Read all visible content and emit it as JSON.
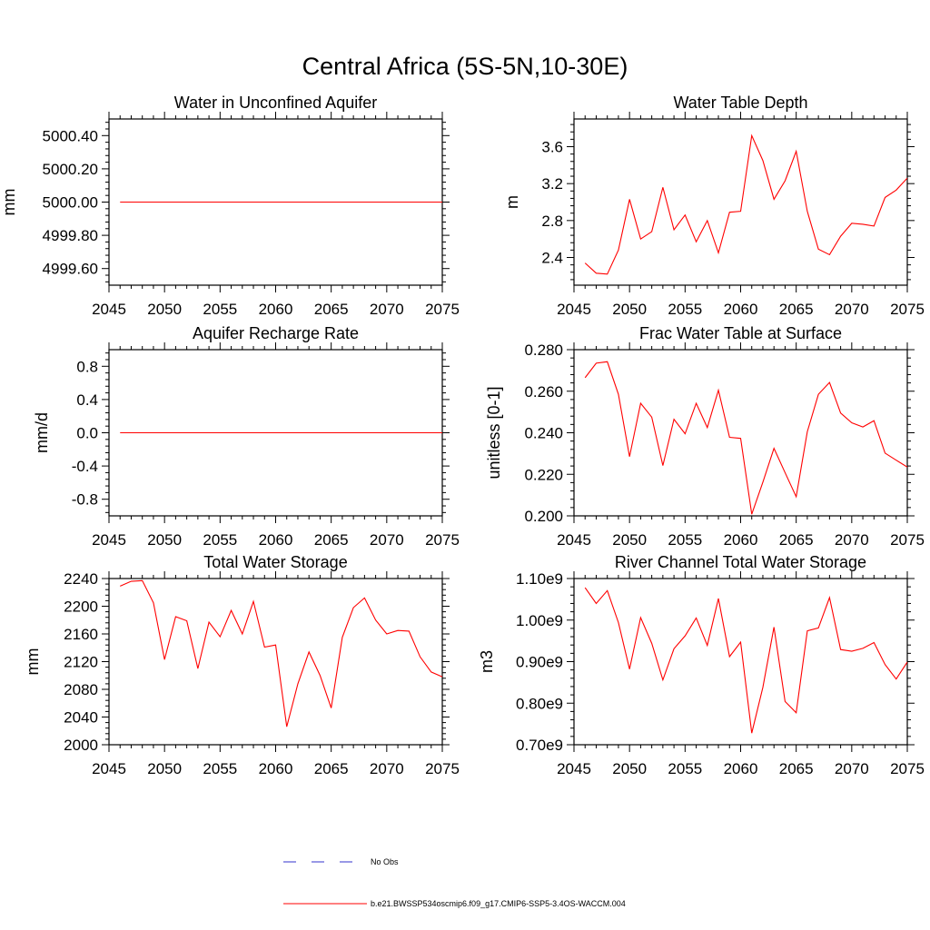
{
  "title": "Central Africa (5S-5N,10-30E)",
  "colors": {
    "model": "#ff0000",
    "obs": "#3333cc",
    "axis": "#000000"
  },
  "legend": {
    "position": "bottom-center",
    "items": [
      {
        "label": "No Obs",
        "style": "dashed",
        "color": "#3333cc"
      },
      {
        "label": "b.e21.BWSSP534oscmip6.f09_g17.CMIP6-SSP5-3.4OS-WACCM.004",
        "style": "solid",
        "color": "#ff0000"
      }
    ]
  },
  "chart_data": [
    {
      "type": "line",
      "title": "Water in Unconfined Aquifer",
      "ylabel": "mm",
      "xlim": [
        2045,
        2075
      ],
      "ylim": [
        4999.5,
        5000.5
      ],
      "xticks": [
        2045,
        2050,
        2055,
        2060,
        2065,
        2070,
        2075
      ],
      "yticks": [
        4999.6,
        4999.8,
        5000.0,
        5000.2,
        5000.4
      ],
      "ytick_labels": [
        "4999.60",
        "4999.80",
        "5000.00",
        "5000.20",
        "5000.40"
      ],
      "x": [
        2046,
        2047,
        2048,
        2049,
        2050,
        2051,
        2052,
        2053,
        2054,
        2055,
        2056,
        2057,
        2058,
        2059,
        2060,
        2061,
        2062,
        2063,
        2064,
        2065,
        2066,
        2067,
        2068,
        2069,
        2070,
        2071,
        2072,
        2073,
        2074,
        2075
      ],
      "series": [
        {
          "values": [
            5000,
            5000,
            5000,
            5000,
            5000,
            5000,
            5000,
            5000,
            5000,
            5000,
            5000,
            5000,
            5000,
            5000,
            5000,
            5000,
            5000,
            5000,
            5000,
            5000,
            5000,
            5000,
            5000,
            5000,
            5000,
            5000,
            5000,
            5000,
            5000,
            5000
          ]
        }
      ]
    },
    {
      "type": "line",
      "title": "Water Table Depth",
      "ylabel": "m",
      "xlim": [
        2045,
        2075
      ],
      "ylim": [
        2.1,
        3.9
      ],
      "xticks": [
        2045,
        2050,
        2055,
        2060,
        2065,
        2070,
        2075
      ],
      "yticks": [
        2.4,
        2.8,
        3.2,
        3.6
      ],
      "ytick_labels": [
        "2.4",
        "2.8",
        "3.2",
        "3.6"
      ],
      "x": [
        2046,
        2047,
        2048,
        2049,
        2050,
        2051,
        2052,
        2053,
        2054,
        2055,
        2056,
        2057,
        2058,
        2059,
        2060,
        2061,
        2062,
        2063,
        2064,
        2065,
        2066,
        2067,
        2068,
        2069,
        2070,
        2071,
        2072,
        2073,
        2074,
        2075
      ],
      "series": [
        {
          "values": [
            2.34,
            2.23,
            2.22,
            2.48,
            3.03,
            2.6,
            2.68,
            3.16,
            2.7,
            2.86,
            2.57,
            2.8,
            2.45,
            2.89,
            2.9,
            3.72,
            3.45,
            3.03,
            3.23,
            3.55,
            2.9,
            2.49,
            2.43,
            2.63,
            2.77,
            2.76,
            2.74,
            3.05,
            3.13,
            3.26
          ]
        }
      ]
    },
    {
      "type": "line",
      "title": "Aquifer Recharge Rate",
      "ylabel": "mm/d",
      "xlim": [
        2045,
        2075
      ],
      "ylim": [
        -1.0,
        1.0
      ],
      "xticks": [
        2045,
        2050,
        2055,
        2060,
        2065,
        2070,
        2075
      ],
      "yticks": [
        -0.8,
        -0.4,
        0.0,
        0.4,
        0.8
      ],
      "ytick_labels": [
        "-0.8",
        "-0.4",
        "0.0",
        "0.4",
        "0.8"
      ],
      "x": [
        2046,
        2047,
        2048,
        2049,
        2050,
        2051,
        2052,
        2053,
        2054,
        2055,
        2056,
        2057,
        2058,
        2059,
        2060,
        2061,
        2062,
        2063,
        2064,
        2065,
        2066,
        2067,
        2068,
        2069,
        2070,
        2071,
        2072,
        2073,
        2074,
        2075
      ],
      "series": [
        {
          "values": [
            0,
            0,
            0,
            0,
            0,
            0,
            0,
            0,
            0,
            0,
            0,
            0,
            0,
            0,
            0,
            0,
            0,
            0,
            0,
            0,
            0,
            0,
            0,
            0,
            0,
            0,
            0,
            0,
            0,
            0
          ]
        }
      ]
    },
    {
      "type": "line",
      "title": "Frac Water Table at Surface",
      "ylabel": "unitless [0-1]",
      "xlim": [
        2045,
        2075
      ],
      "ylim": [
        0.2,
        0.28
      ],
      "xticks": [
        2045,
        2050,
        2055,
        2060,
        2065,
        2070,
        2075
      ],
      "yticks": [
        0.2,
        0.22,
        0.24,
        0.26,
        0.28
      ],
      "ytick_labels": [
        "0.200",
        "0.220",
        "0.240",
        "0.260",
        "0.280"
      ],
      "x": [
        2046,
        2047,
        2048,
        2049,
        2050,
        2051,
        2052,
        2053,
        2054,
        2055,
        2056,
        2057,
        2058,
        2059,
        2060,
        2061,
        2062,
        2063,
        2064,
        2065,
        2066,
        2067,
        2068,
        2069,
        2070,
        2071,
        2072,
        2073,
        2074,
        2075
      ],
      "series": [
        {
          "values": [
            0.2665,
            0.2735,
            0.2742,
            0.2585,
            0.2285,
            0.2542,
            0.2475,
            0.2242,
            0.2465,
            0.2395,
            0.2542,
            0.2425,
            0.2605,
            0.2378,
            0.2373,
            0.2008,
            0.2162,
            0.2325,
            0.2208,
            0.2092,
            0.2405,
            0.2585,
            0.2642,
            0.2495,
            0.2448,
            0.2428,
            0.2458,
            0.2302,
            0.2268,
            0.2235
          ]
        }
      ]
    },
    {
      "type": "line",
      "title": "Total Water Storage",
      "ylabel": "mm",
      "xlim": [
        2045,
        2075
      ],
      "ylim": [
        2000,
        2240
      ],
      "xticks": [
        2045,
        2050,
        2055,
        2060,
        2065,
        2070,
        2075
      ],
      "yticks": [
        2000,
        2040,
        2080,
        2120,
        2160,
        2200,
        2240
      ],
      "ytick_labels": [
        "2000",
        "2040",
        "2080",
        "2120",
        "2160",
        "2200",
        "2240"
      ],
      "x": [
        2046,
        2047,
        2048,
        2049,
        2050,
        2051,
        2052,
        2053,
        2054,
        2055,
        2056,
        2057,
        2058,
        2059,
        2060,
        2061,
        2062,
        2063,
        2064,
        2065,
        2066,
        2067,
        2068,
        2069,
        2070,
        2071,
        2072,
        2073,
        2074,
        2075
      ],
      "series": [
        {
          "values": [
            2229,
            2236,
            2237,
            2205,
            2123,
            2185,
            2179,
            2110,
            2177,
            2156,
            2194,
            2160,
            2207,
            2141,
            2144,
            2026,
            2088,
            2134,
            2100,
            2053,
            2155,
            2198,
            2212,
            2180,
            2160,
            2165,
            2164,
            2127,
            2105,
            2098
          ]
        }
      ]
    },
    {
      "type": "line",
      "title": "River Channel Total Water Storage",
      "ylabel": "m3",
      "xlim": [
        2045,
        2075
      ],
      "ylim": [
        700000000,
        1100000000
      ],
      "xticks": [
        2045,
        2050,
        2055,
        2060,
        2065,
        2070,
        2075
      ],
      "yticks": [
        700000000,
        800000000,
        900000000,
        1000000000,
        1100000000
      ],
      "ytick_labels": [
        "0.70e9",
        "0.80e9",
        "0.90e9",
        "1.00e9",
        "1.10e9"
      ],
      "x": [
        2046,
        2047,
        2048,
        2049,
        2050,
        2051,
        2052,
        2053,
        2054,
        2055,
        2056,
        2057,
        2058,
        2059,
        2060,
        2061,
        2062,
        2063,
        2064,
        2065,
        2066,
        2067,
        2068,
        2069,
        2070,
        2071,
        2072,
        2073,
        2074,
        2075
      ],
      "series": [
        {
          "values": [
            1078000000,
            1040000000,
            1071000000,
            994000000,
            882000000,
            1006000000,
            944000000,
            856000000,
            931000000,
            962000000,
            1005000000,
            939000000,
            1052000000,
            912000000,
            947000000,
            728000000,
            838000000,
            983000000,
            804000000,
            777000000,
            974000000,
            981000000,
            1054000000,
            929000000,
            925000000,
            932000000,
            946000000,
            893000000,
            858000000,
            899000000
          ]
        }
      ]
    }
  ]
}
